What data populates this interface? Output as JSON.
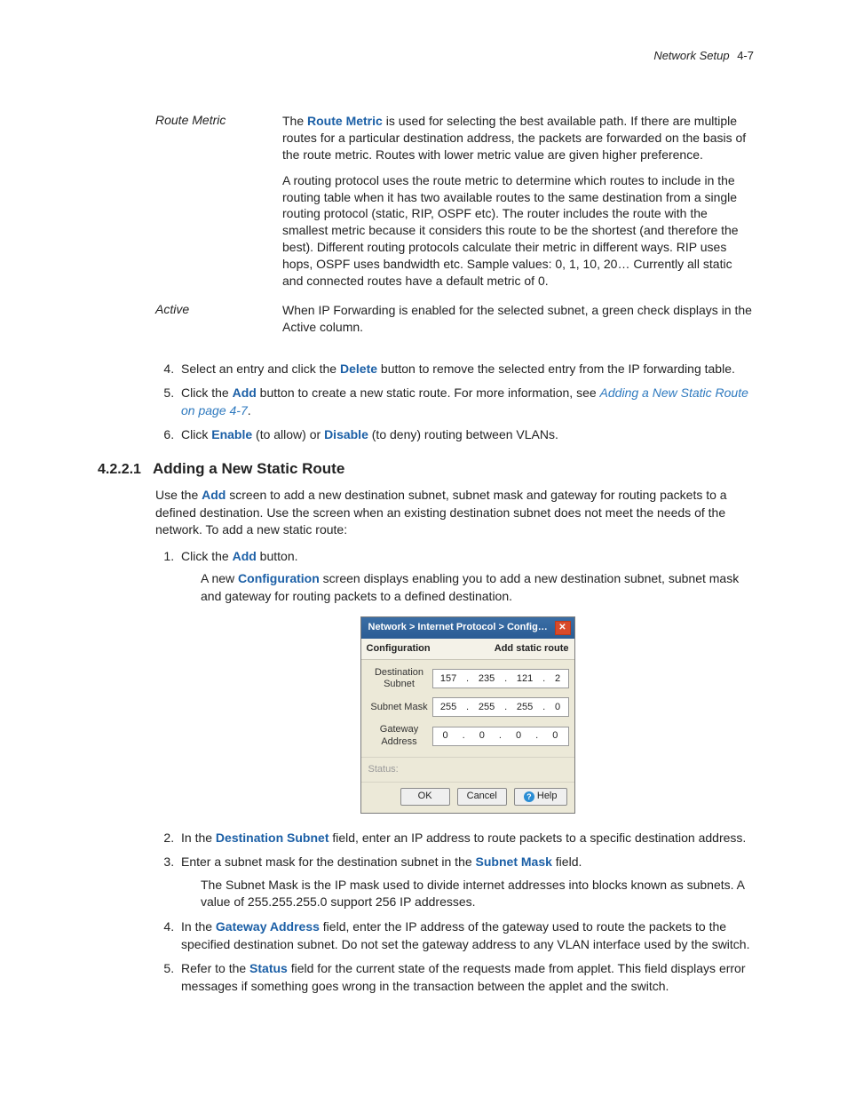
{
  "header": {
    "section_name": "Network Setup",
    "page_num": "4-7"
  },
  "defs": {
    "route_metric": {
      "term": "Route Metric",
      "bold": "Route Metric",
      "p1_prefix": "The ",
      "p1_suffix": " is used for selecting the best available path. If there are multiple routes for a particular destination address, the packets are forwarded on the basis of the route metric. Routes with lower metric value are given higher preference.",
      "p2": "A routing protocol uses the route metric to determine which routes to include in the routing table when it has two available routes to the same destination from a single routing protocol (static, RIP, OSPF etc). The router includes the route with the smallest metric because it considers this route to be the shortest (and therefore the best). Different routing protocols calculate their metric in different ways. RIP uses hops, OSPF uses bandwidth etc. Sample values: 0, 1, 10, 20… Currently all static and connected routes have a default metric of 0."
    },
    "active": {
      "term": "Active",
      "p1": "When IP Forwarding is enabled for the selected subnet, a green check displays in the Active column."
    }
  },
  "steps_a": {
    "s4_a": "Select an entry and click the ",
    "s4_bold": "Delete",
    "s4_b": " button to remove the selected entry from the IP forwarding table.",
    "s5_a": "Click the ",
    "s5_bold": "Add",
    "s5_b": " button to create a new static route. For more information, see ",
    "s5_link": "Adding a New Static Route on page 4-7",
    "s5_c": ".",
    "s6_a": "Click ",
    "s6_bold1": "Enable",
    "s6_b": " (to allow) or ",
    "s6_bold2": "Disable",
    "s6_c": " (to deny) routing between VLANs."
  },
  "heading": {
    "num": "4.2.2.1",
    "title": "Adding a New Static Route"
  },
  "intro": {
    "a": "Use the ",
    "bold": "Add",
    "b": " screen to add a new destination subnet, subnet mask and gateway for routing packets to a defined destination. Use the screen when an existing destination subnet does not meet the needs of the network. To add a new static route:"
  },
  "steps_b": {
    "s1_a": "Click the ",
    "s1_bold": "Add",
    "s1_b": " button.",
    "s1_sub_a": "A new ",
    "s1_sub_bold": "Configuration",
    "s1_sub_b": " screen displays enabling you to add a new destination subnet, subnet mask and gateway for routing packets to a defined destination.",
    "s2_a": "In the ",
    "s2_bold": "Destination Subnet",
    "s2_b": " field, enter an IP address to route packets to a specific destination address.",
    "s3_a": "Enter a subnet mask for the destination subnet in the ",
    "s3_bold": "Subnet Mask",
    "s3_b": " field.",
    "s3_sub": "The Subnet Mask is the IP mask used to divide internet addresses into blocks known as subnets. A value of 255.255.255.0 support 256 IP addresses.",
    "s4_a": "In the ",
    "s4_bold": "Gateway Address",
    "s4_b": " field, enter the IP address of the gateway used to route the packets to the specified destination subnet. Do not set the gateway address to any VLAN interface used by the switch.",
    "s5_a": "Refer to the ",
    "s5_bold": "Status",
    "s5_b": " field for the current state of the requests made from applet. This field displays error messages if something goes wrong in the transaction between the applet and the switch."
  },
  "dialog": {
    "title": "Network > Internet Protocol > Config…",
    "head_left": "Configuration",
    "head_right": "Add static route",
    "rows": [
      {
        "label": "Destination Subnet",
        "ip": [
          "157",
          "235",
          "121",
          "2"
        ]
      },
      {
        "label": "Subnet Mask",
        "ip": [
          "255",
          "255",
          "255",
          "0"
        ]
      },
      {
        "label": "Gateway Address",
        "ip": [
          "0",
          "0",
          "0",
          "0"
        ]
      }
    ],
    "status_label": "Status:",
    "buttons": {
      "ok": "OK",
      "cancel": "Cancel",
      "help": "Help"
    },
    "colors": {
      "titlebar_bg": "#2a5c94",
      "dialog_bg": "#ece9d8",
      "close_bg": "#d84a2a"
    }
  }
}
